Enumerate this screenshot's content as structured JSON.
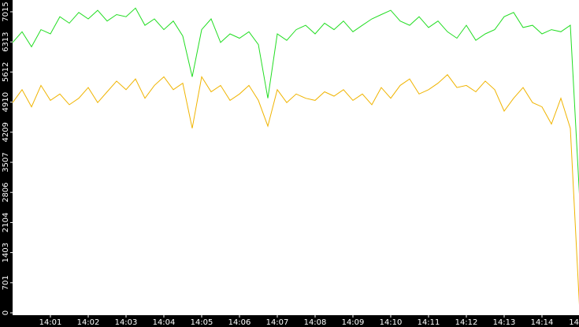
{
  "chart_data": {
    "type": "line",
    "xlim": [
      840,
      855
    ],
    "xticks": [
      {
        "value": 841,
        "label": "14:01"
      },
      {
        "value": 842,
        "label": "14:02"
      },
      {
        "value": 843,
        "label": "14:03"
      },
      {
        "value": 844,
        "label": "14:04"
      },
      {
        "value": 845,
        "label": "14:05"
      },
      {
        "value": 846,
        "label": "14:06"
      },
      {
        "value": 847,
        "label": "14:07"
      },
      {
        "value": 848,
        "label": "14:08"
      },
      {
        "value": 849,
        "label": "14:09"
      },
      {
        "value": 850,
        "label": "14:10"
      },
      {
        "value": 851,
        "label": "14:11"
      },
      {
        "value": 852,
        "label": "14:12"
      },
      {
        "value": 853,
        "label": "14:13"
      },
      {
        "value": 854,
        "label": "14:14"
      },
      {
        "value": 855,
        "label": "14"
      }
    ],
    "ylim": [
      0,
      7290
    ],
    "yticks": [
      0,
      701,
      1403,
      2104,
      2806,
      3507,
      4209,
      4910,
      5612,
      6313,
      7015
    ],
    "x": [
      840,
      840.25,
      840.5,
      840.75,
      841,
      841.25,
      841.5,
      841.75,
      842,
      842.25,
      842.5,
      842.75,
      843,
      843.25,
      843.5,
      843.75,
      844,
      844.25,
      844.5,
      844.75,
      845,
      845.25,
      845.5,
      845.75,
      846,
      846.25,
      846.5,
      846.75,
      847,
      847.25,
      847.5,
      847.75,
      848,
      848.25,
      848.5,
      848.75,
      849,
      849.25,
      849.5,
      849.75,
      850,
      850.25,
      850.5,
      850.75,
      851,
      851.25,
      851.5,
      851.75,
      852,
      852.25,
      852.5,
      852.75,
      853,
      853.25,
      853.5,
      853.75,
      854,
      854.25,
      854.5,
      854.75,
      855
    ],
    "series": [
      {
        "color": "#22dd22",
        "values": [
          6300,
          6550,
          6200,
          6600,
          6500,
          6900,
          6750,
          7000,
          6850,
          7050,
          6800,
          6950,
          6900,
          7100,
          6700,
          6850,
          6600,
          6800,
          6450,
          5500,
          6600,
          6850,
          6300,
          6500,
          6400,
          6550,
          6250,
          5000,
          6500,
          6350,
          6600,
          6700,
          6500,
          6750,
          6600,
          6800,
          6550,
          6700,
          6850,
          6950,
          7050,
          6800,
          6700,
          6900,
          6650,
          6800,
          6550,
          6400,
          6700,
          6350,
          6500,
          6600,
          6900,
          7000,
          6650,
          6700,
          6500,
          6600,
          6550,
          6700,
          2600
        ]
      },
      {
        "color": "#f0b400",
        "values": [
          4900,
          5200,
          4800,
          5300,
          4950,
          5100,
          4850,
          5000,
          5250,
          4900,
          5150,
          5400,
          5200,
          5450,
          5000,
          5300,
          5500,
          5200,
          5350,
          4300,
          5500,
          5150,
          5300,
          4950,
          5100,
          5300,
          4950,
          4350,
          5200,
          4900,
          5100,
          5000,
          4950,
          5150,
          5050,
          5200,
          4950,
          5100,
          4850,
          5250,
          5000,
          5300,
          5450,
          5100,
          5200,
          5350,
          5550,
          5250,
          5300,
          5150,
          5400,
          5200,
          4700,
          5000,
          5250,
          4900,
          4800,
          4400,
          5000,
          4300,
          0
        ]
      }
    ]
  }
}
